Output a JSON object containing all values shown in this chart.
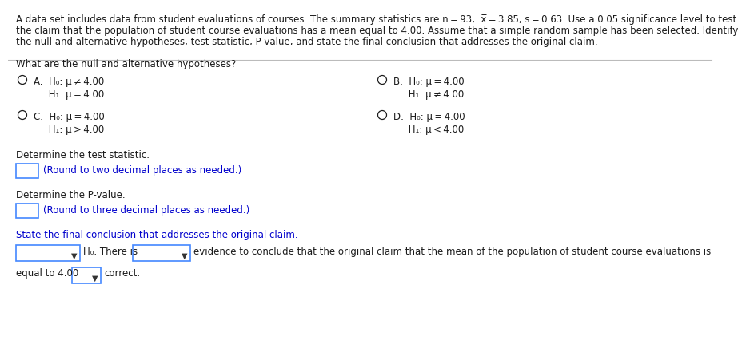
{
  "bg_color": "#ffffff",
  "text_color": "#1a1a1a",
  "blue_color": "#0000cc",
  "header_lines": [
    "A data set includes data from student evaluations of courses. The summary statistics are n = 93,  x̅ = 3.85, s = 0.63. Use a 0.05 significance level to test",
    "the claim that the population of student course evaluations has a mean equal to 4.00. Assume that a simple random sample has been selected. Identify",
    "the null and alternative hypotheses, test statistic, P-value, and state the final conclusion that addresses the original claim."
  ],
  "question1": "What are the null and alternative hypotheses?",
  "optA_1": "A.  H₀: μ ≠ 4.00",
  "optA_2": "     H₁: μ = 4.00",
  "optB_1": "B.  H₀: μ = 4.00",
  "optB_2": "     H₁: μ ≠ 4.00",
  "optC_1": "C.  H₀: μ = 4.00",
  "optC_2": "     H₁: μ > 4.00",
  "optD_1": "D.  H₀: μ = 4.00",
  "optD_2": "     H₁: μ < 4.00",
  "q2": "Determine the test statistic.",
  "q2_sub": "(Round to two decimal places as needed.)",
  "q3": "Determine the P-value.",
  "q3_sub": "(Round to three decimal places as needed.)",
  "q4": "State the final conclusion that addresses the original claim.",
  "concl_mid": "H₀. There is",
  "concl_end": "evidence to conclude that the original claim that the mean of the population of student course evaluations is",
  "last_start": "equal to 4.00",
  "last_end": "correct.",
  "arrow": "▼"
}
